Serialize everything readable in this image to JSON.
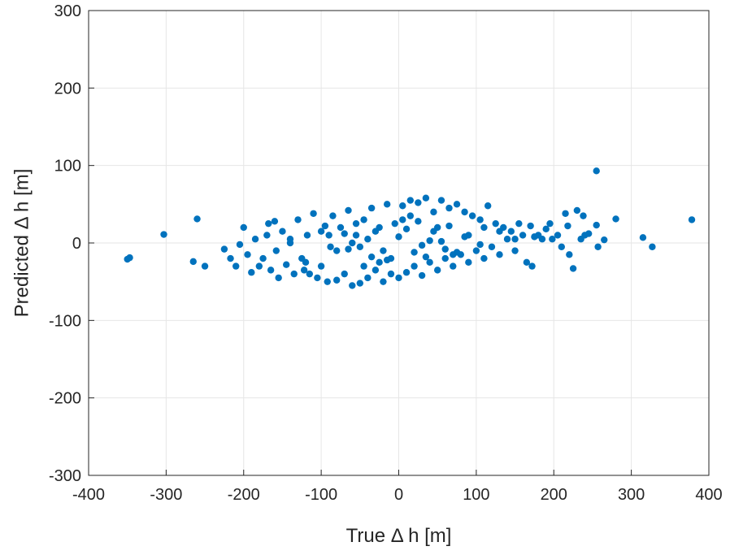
{
  "chart_data": {
    "type": "scatter",
    "xlabel": "True Δ h [m]",
    "ylabel": "Predicted Δ h [m]",
    "xlim": [
      -400,
      400
    ],
    "ylim": [
      -300,
      300
    ],
    "xticks": [
      -400,
      -300,
      -200,
      -100,
      0,
      100,
      200,
      300,
      400
    ],
    "yticks": [
      -300,
      -200,
      -100,
      0,
      100,
      200,
      300
    ],
    "xtick_labels": [
      "-400",
      "-300",
      "-200",
      "-100",
      "0",
      "100",
      "200",
      "300",
      "400"
    ],
    "ytick_labels": [
      "-300",
      "-200",
      "-100",
      "0",
      "100",
      "200",
      "300"
    ],
    "grid": true,
    "box": true,
    "marker_color": "#0072BD",
    "series": [
      {
        "x": [
          -350,
          -347,
          -303,
          -260,
          -265,
          -250,
          -225,
          -217,
          -210,
          -205,
          -200,
          -195,
          -190,
          -185,
          -180,
          -175,
          -170,
          -168,
          -165,
          -160,
          -158,
          -155,
          -150,
          -145,
          -140,
          -135,
          -130,
          -125,
          -122,
          -118,
          -115,
          -110,
          -105,
          -100,
          -95,
          -92,
          -88,
          -85,
          -80,
          -75,
          -70,
          -65,
          -60,
          -55,
          -50,
          -45,
          -40,
          -35,
          -30,
          -25,
          -20,
          -15,
          -10,
          -5,
          0,
          5,
          10,
          15,
          20,
          25,
          30,
          35,
          40,
          45,
          50,
          55,
          60,
          65,
          70,
          75,
          80,
          85,
          90,
          95,
          100,
          105,
          110,
          115,
          120,
          125,
          130,
          135,
          140,
          145,
          150,
          155,
          160,
          165,
          170,
          172,
          175,
          180,
          185,
          190,
          195,
          198,
          205,
          210,
          215,
          218,
          220,
          225,
          230,
          235,
          238,
          240,
          245,
          255,
          255,
          257,
          265,
          280,
          315,
          327,
          378,
          -60,
          -40,
          -20,
          0,
          20,
          40,
          60,
          -70,
          -50,
          -30,
          -10,
          10,
          30,
          50,
          70,
          -80,
          -55,
          -25,
          5,
          35,
          65,
          90,
          -45,
          -15,
          15,
          45,
          75,
          -35,
          25,
          55,
          85,
          105,
          -90,
          -65,
          110,
          130,
          150,
          -120,
          -140,
          -100
        ],
        "y": [
          -21,
          -19,
          11,
          31,
          -24,
          -30,
          -8,
          -20,
          -30,
          -2,
          20,
          -15,
          -38,
          5,
          -30,
          -20,
          10,
          25,
          -35,
          28,
          -10,
          -45,
          15,
          -28,
          5,
          -40,
          30,
          -20,
          -35,
          10,
          -40,
          38,
          -45,
          -30,
          22,
          -50,
          -5,
          35,
          -48,
          20,
          -40,
          42,
          -55,
          10,
          -52,
          30,
          -45,
          45,
          -35,
          20,
          -50,
          50,
          -40,
          25,
          -45,
          48,
          -38,
          55,
          -30,
          52,
          -42,
          58,
          -25,
          40,
          -35,
          55,
          -20,
          45,
          -30,
          50,
          -15,
          40,
          -25,
          35,
          -10,
          30,
          -20,
          48,
          -5,
          25,
          -15,
          20,
          5,
          15,
          -10,
          25,
          10,
          -25,
          22,
          -30,
          8,
          10,
          5,
          18,
          25,
          5,
          10,
          -5,
          38,
          22,
          -15,
          -33,
          42,
          5,
          35,
          10,
          12,
          93,
          23,
          -5,
          4,
          31,
          7,
          -5,
          30,
          0,
          5,
          -10,
          8,
          -12,
          3,
          -8,
          12,
          -5,
          15,
          -20,
          18,
          -3,
          20,
          -15,
          -10,
          25,
          -25,
          30,
          -18,
          22,
          10,
          -30,
          -22,
          35,
          15,
          -12,
          -18,
          28,
          2,
          8,
          -2,
          10,
          -8,
          20,
          15,
          5,
          -25,
          0,
          15
        ]
      }
    ]
  }
}
